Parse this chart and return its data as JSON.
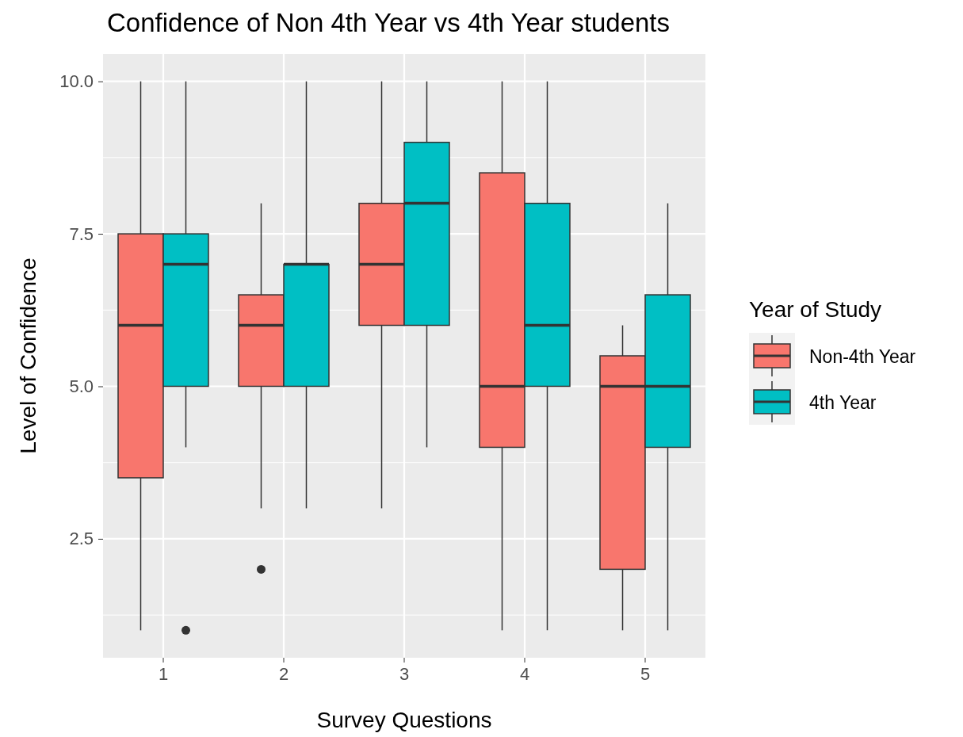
{
  "chart_data": {
    "type": "box",
    "title": "Confidence of Non 4th Year vs 4th Year students",
    "xlabel": "Survey Questions",
    "ylabel": "Level of Confidence",
    "legend_title": "Year of Study",
    "categories": [
      "1",
      "2",
      "3",
      "4",
      "5"
    ],
    "series": [
      {
        "name": "Non-4th Year",
        "color": "#f8766d",
        "boxes": [
          {
            "low": 1,
            "q1": 3.5,
            "median": 6,
            "q3": 7.5,
            "high": 10
          },
          {
            "low": 3,
            "q1": 5,
            "median": 6,
            "q3": 6.5,
            "high": 8,
            "outliers": [
              2
            ]
          },
          {
            "low": 3,
            "q1": 6,
            "median": 7,
            "q3": 8,
            "high": 10
          },
          {
            "low": 1,
            "q1": 4,
            "median": 5,
            "q3": 8.5,
            "high": 10
          },
          {
            "low": 1,
            "q1": 2,
            "median": 5,
            "q3": 5.5,
            "high": 6
          }
        ]
      },
      {
        "name": "4th Year",
        "color": "#00bfc4",
        "boxes": [
          {
            "low": 4,
            "q1": 5,
            "median": 7,
            "q3": 7.5,
            "high": 10,
            "outliers": [
              1
            ]
          },
          {
            "low": 3,
            "q1": 5,
            "median": 7,
            "q3": 7,
            "high": 10
          },
          {
            "low": 4,
            "q1": 6,
            "median": 8,
            "q3": 9,
            "high": 10
          },
          {
            "low": 1,
            "q1": 5,
            "median": 6,
            "q3": 8,
            "high": 10
          },
          {
            "low": 1,
            "q1": 4,
            "median": 5,
            "q3": 6.5,
            "high": 8
          }
        ]
      }
    ],
    "ylim": [
      0.55,
      10.45
    ],
    "yticks": [
      {
        "value": 2.5,
        "label": "2.5"
      },
      {
        "value": 5,
        "label": "5.0"
      },
      {
        "value": 7.5,
        "label": "7.5"
      },
      {
        "value": 10,
        "label": "10.0"
      }
    ],
    "grid": true,
    "legend": "right"
  }
}
